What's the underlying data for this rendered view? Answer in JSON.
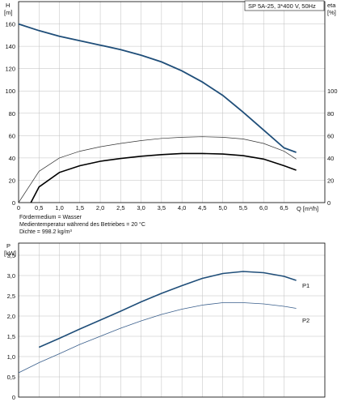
{
  "header_box": "SP 5A-25, 3*400 V, 50Hz",
  "medium_notes": [
    "Fördermedium = Wasser",
    "Medientemperatur während des Betriebes = 20 °C",
    "Dichte = 998.2 kg/m³"
  ],
  "colors": {
    "hq_curve": "#1f4e79",
    "p1_curve": "#1f4e79",
    "p2_curve": "#3a5f8c",
    "eta_total": "#000000",
    "eta_pump": "#333333",
    "grid": "#bfbfbf"
  },
  "chart_data": [
    {
      "type": "line",
      "title": "",
      "xlabel": "Q [m³/h]",
      "x_ticks": [
        "0",
        "0,5",
        "1,0",
        "1,5",
        "2,0",
        "2,5",
        "3,0",
        "3,5",
        "4,0",
        "4,5",
        "5,0",
        "5,5",
        "6,0",
        "6,5"
      ],
      "xlim": [
        0,
        7.5
      ],
      "y_left": {
        "label_top": "H",
        "label_unit": "[m]",
        "ticks": [
          "0",
          "20",
          "40",
          "60",
          "80",
          "100",
          "120",
          "140",
          "160"
        ],
        "lim": [
          0,
          180
        ]
      },
      "y_right": {
        "label_top": "eta",
        "label_unit": "[%]",
        "ticks": [
          "0",
          "20",
          "40",
          "60",
          "80",
          "100"
        ],
        "lim": [
          0,
          180
        ]
      },
      "grid": true,
      "series": [
        {
          "axis": "left",
          "x": [
            0,
            0.5,
            1,
            1.5,
            2,
            2.5,
            3,
            3.5,
            4,
            4.5,
            5,
            5.5,
            6,
            6.5,
            6.8
          ],
          "values": [
            160,
            154,
            149,
            145,
            141,
            137,
            132,
            126,
            118,
            108,
            96,
            81,
            65,
            49,
            45
          ]
        },
        {
          "axis": "right",
          "x": [
            0.3,
            0.5,
            1,
            1.5,
            2,
            2.5,
            3,
            3.5,
            4,
            4.5,
            5,
            5.5,
            6,
            6.5,
            6.8
          ],
          "values": [
            0,
            14,
            27,
            33,
            37,
            39.5,
            41.5,
            43,
            44,
            44,
            43.5,
            42,
            39,
            33,
            29
          ]
        },
        {
          "axis": "right",
          "x": [
            0,
            0.5,
            1,
            1.5,
            2,
            2.5,
            3,
            3.5,
            4,
            4.5,
            5,
            5.5,
            6,
            6.5,
            6.8
          ],
          "values": [
            0,
            28,
            40,
            46,
            50,
            53,
            55.5,
            57.5,
            58.5,
            59,
            58.5,
            57,
            53,
            46,
            39
          ]
        }
      ]
    },
    {
      "type": "line",
      "title": "",
      "xlabel": "",
      "xlim": [
        0,
        7.5
      ],
      "y_left": {
        "label_top": "P",
        "label_unit": "[kW]",
        "ticks": [
          "0",
          "0,5",
          "1,0",
          "1,5",
          "2,0",
          "2,5",
          "3,0",
          "3,5"
        ],
        "lim": [
          0,
          3.8
        ]
      },
      "grid": true,
      "series": [
        {
          "name": "P1",
          "x": [
            0.5,
            1,
            1.5,
            2,
            2.5,
            3,
            3.5,
            4,
            4.5,
            5,
            5.5,
            6,
            6.5,
            6.8
          ],
          "values": [
            1.23,
            1.45,
            1.68,
            1.9,
            2.12,
            2.35,
            2.56,
            2.75,
            2.93,
            3.05,
            3.1,
            3.07,
            2.98,
            2.88
          ]
        },
        {
          "name": "P2",
          "x": [
            0,
            0.5,
            1,
            1.5,
            2,
            2.5,
            3,
            3.5,
            4,
            4.5,
            5,
            5.5,
            6,
            6.5,
            6.8
          ],
          "values": [
            0.6,
            0.85,
            1.07,
            1.3,
            1.5,
            1.7,
            1.88,
            2.04,
            2.17,
            2.27,
            2.33,
            2.33,
            2.3,
            2.24,
            2.19
          ]
        }
      ]
    }
  ]
}
